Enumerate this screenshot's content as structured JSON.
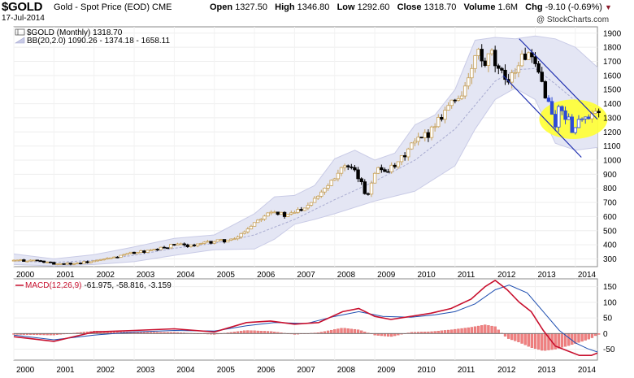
{
  "header": {
    "symbol": "$GOLD",
    "description": "Gold - Spot Price (EOD)",
    "exchange": "CME",
    "date": "17-Jul-2014",
    "open_label": "Open",
    "open": "1327.50",
    "high_label": "High",
    "high": "1346.80",
    "low_label": "Low",
    "low": "1292.60",
    "close_label": "Close",
    "close": "1318.70",
    "volume_label": "Volume",
    "volume": "1.6M",
    "chg_label": "Chg",
    "chg": "-9.10 (-0.69%)",
    "brand": "@ StockCharts.com"
  },
  "colors": {
    "up": "#c8a25a",
    "down": "#000000",
    "blue_candle": "#2e4bd6",
    "band_fill": "#e4e6f4",
    "band_edge": "#c9cbe6",
    "channel": "#1f2fb0",
    "highlight": "#ffff33",
    "macd": "#c8102e",
    "signal": "#1f4fb0",
    "hist": "#f08080"
  },
  "chart_data": [
    {
      "type": "candlestick",
      "title": "$GOLD (Monthly) 1318.70",
      "legend": [
        "$GOLD (Monthly) 1318.70",
        "BB(20,2.0) 1090.26 - 1374.18 - 1658.11"
      ],
      "x": [
        "2000",
        "2001",
        "2002",
        "2003",
        "2004",
        "2005",
        "2006",
        "2007",
        "2008",
        "2009",
        "2010",
        "2011",
        "2012",
        "2013",
        "2014"
      ],
      "x_range": [
        2000.0,
        2014.55
      ],
      "ylim": [
        245,
        1945
      ],
      "yticks": [
        300,
        400,
        500,
        600,
        700,
        800,
        900,
        1000,
        1100,
        1200,
        1300,
        1400,
        1500,
        1600,
        1700,
        1800,
        1900
      ],
      "close_series": [
        [
          2000.0,
          288
        ],
        [
          2000.5,
          290
        ],
        [
          2001.0,
          265
        ],
        [
          2001.5,
          268
        ],
        [
          2002.0,
          282
        ],
        [
          2002.5,
          310
        ],
        [
          2003.0,
          345
        ],
        [
          2003.5,
          360
        ],
        [
          2004.0,
          400
        ],
        [
          2004.5,
          395
        ],
        [
          2005.0,
          425
        ],
        [
          2005.5,
          435
        ],
        [
          2006.0,
          560
        ],
        [
          2006.4,
          650
        ],
        [
          2006.8,
          600
        ],
        [
          2007.3,
          680
        ],
        [
          2007.8,
          820
        ],
        [
          2008.2,
          960
        ],
        [
          2008.55,
          900
        ],
        [
          2008.8,
          740
        ],
        [
          2009.0,
          930
        ],
        [
          2009.5,
          940
        ],
        [
          2009.9,
          1100
        ],
        [
          2010.3,
          1180
        ],
        [
          2010.8,
          1380
        ],
        [
          2011.1,
          1450
        ],
        [
          2011.4,
          1600
        ],
        [
          2011.55,
          1800
        ],
        [
          2011.7,
          1650
        ],
        [
          2011.9,
          1750
        ],
        [
          2012.1,
          1600
        ],
        [
          2012.4,
          1590
        ],
        [
          2012.6,
          1700
        ],
        [
          2012.8,
          1760
        ],
        [
          2012.95,
          1670
        ],
        [
          2013.1,
          1600
        ],
        [
          2013.25,
          1480
        ],
        [
          2013.4,
          1340
        ],
        [
          2013.5,
          1250
        ],
        [
          2013.6,
          1380
        ],
        [
          2013.75,
          1320
        ],
        [
          2013.95,
          1210
        ],
        [
          2014.05,
          1250
        ],
        [
          2014.15,
          1330
        ],
        [
          2014.25,
          1280
        ],
        [
          2014.35,
          1290
        ],
        [
          2014.45,
          1320
        ]
      ],
      "bollinger": {
        "upper": [
          [
            2000,
            335
          ],
          [
            2001,
            300
          ],
          [
            2002,
            330
          ],
          [
            2003,
            385
          ],
          [
            2004,
            445
          ],
          [
            2005,
            470
          ],
          [
            2006,
            620
          ],
          [
            2006.5,
            740
          ],
          [
            2007,
            750
          ],
          [
            2007.5,
            820
          ],
          [
            2008,
            1010
          ],
          [
            2008.5,
            1070
          ],
          [
            2009,
            1000
          ],
          [
            2009.5,
            1050
          ],
          [
            2010,
            1250
          ],
          [
            2010.5,
            1320
          ],
          [
            2011,
            1500
          ],
          [
            2011.5,
            1850
          ],
          [
            2012,
            1870
          ],
          [
            2012.5,
            1860
          ],
          [
            2013,
            1880
          ],
          [
            2013.5,
            1860
          ],
          [
            2014,
            1800
          ],
          [
            2014.55,
            1658
          ]
        ],
        "middle": [
          [
            2000,
            285
          ],
          [
            2001,
            275
          ],
          [
            2002,
            290
          ],
          [
            2003,
            325
          ],
          [
            2004,
            375
          ],
          [
            2005,
            410
          ],
          [
            2006,
            470
          ],
          [
            2007,
            580
          ],
          [
            2008,
            720
          ],
          [
            2009,
            850
          ],
          [
            2010,
            1000
          ],
          [
            2011,
            1220
          ],
          [
            2012,
            1560
          ],
          [
            2012.5,
            1640
          ],
          [
            2013,
            1650
          ],
          [
            2013.5,
            1540
          ],
          [
            2014,
            1420
          ],
          [
            2014.55,
            1374
          ]
        ],
        "lower": [
          [
            2000,
            260
          ],
          [
            2001,
            250
          ],
          [
            2002,
            260
          ],
          [
            2003,
            280
          ],
          [
            2004,
            325
          ],
          [
            2005,
            365
          ],
          [
            2006,
            370
          ],
          [
            2006.5,
            440
          ],
          [
            2007,
            545
          ],
          [
            2007.5,
            580
          ],
          [
            2008,
            620
          ],
          [
            2009,
            710
          ],
          [
            2010,
            780
          ],
          [
            2011,
            960
          ],
          [
            2011.5,
            1220
          ],
          [
            2012,
            1430
          ],
          [
            2012.5,
            1510
          ],
          [
            2013,
            1430
          ],
          [
            2013.5,
            1120
          ],
          [
            2014,
            1070
          ],
          [
            2014.55,
            1090
          ]
        ]
      },
      "channel_upper": [
        [
          2012.6,
          1860
        ],
        [
          2014.55,
          1290
        ]
      ],
      "channel_lower": [
        [
          2012.2,
          1600
        ],
        [
          2014.15,
          1020
        ]
      ],
      "highlight_center": [
        2013.95,
        1290
      ],
      "highlight_radius": [
        0.85,
        140
      ]
    },
    {
      "type": "line",
      "title": "MACD(12,26,9) -61.975, -58.816, -3.159",
      "legend": [
        "MACD(12,26,9)",
        "-61.975, -58.816, -3.159"
      ],
      "ylim": [
        -85,
        175
      ],
      "yticks": [
        -50,
        0,
        50,
        100,
        150
      ],
      "series": [
        {
          "name": "MACD",
          "values": [
            [
              2000,
              -10
            ],
            [
              2001,
              -25
            ],
            [
              2002,
              5
            ],
            [
              2003,
              10
            ],
            [
              2004,
              15
            ],
            [
              2005,
              5
            ],
            [
              2005.8,
              35
            ],
            [
              2006.4,
              40
            ],
            [
              2007,
              30
            ],
            [
              2007.6,
              35
            ],
            [
              2008.2,
              70
            ],
            [
              2008.6,
              80
            ],
            [
              2009,
              55
            ],
            [
              2009.4,
              45
            ],
            [
              2009.9,
              55
            ],
            [
              2010.4,
              65
            ],
            [
              2010.9,
              80
            ],
            [
              2011.4,
              110
            ],
            [
              2011.75,
              150
            ],
            [
              2012,
              170
            ],
            [
              2012.3,
              140
            ],
            [
              2012.6,
              100
            ],
            [
              2012.9,
              70
            ],
            [
              2013.2,
              10
            ],
            [
              2013.5,
              -40
            ],
            [
              2013.8,
              -55
            ],
            [
              2014.1,
              -70
            ],
            [
              2014.4,
              -70
            ],
            [
              2014.55,
              -62
            ]
          ]
        },
        {
          "name": "Signal",
          "values": [
            [
              2000,
              -5
            ],
            [
              2001,
              -20
            ],
            [
              2002,
              -5
            ],
            [
              2003,
              5
            ],
            [
              2004,
              10
            ],
            [
              2005,
              8
            ],
            [
              2005.8,
              25
            ],
            [
              2006.5,
              35
            ],
            [
              2007.3,
              32
            ],
            [
              2008,
              55
            ],
            [
              2008.6,
              70
            ],
            [
              2009.2,
              55
            ],
            [
              2009.9,
              52
            ],
            [
              2010.5,
              60
            ],
            [
              2011,
              70
            ],
            [
              2011.5,
              95
            ],
            [
              2012,
              140
            ],
            [
              2012.35,
              155
            ],
            [
              2012.8,
              130
            ],
            [
              2013.2,
              70
            ],
            [
              2013.6,
              10
            ],
            [
              2014,
              -30
            ],
            [
              2014.3,
              -48
            ],
            [
              2014.55,
              -59
            ]
          ]
        },
        {
          "name": "Histogram",
          "values": [
            [
              2000,
              -3
            ],
            [
              2001,
              -5
            ],
            [
              2002,
              8
            ],
            [
              2003,
              5
            ],
            [
              2004,
              4
            ],
            [
              2005,
              -3
            ],
            [
              2005.8,
              10
            ],
            [
              2006.4,
              7
            ],
            [
              2007,
              -3
            ],
            [
              2007.6,
              3
            ],
            [
              2008.2,
              18
            ],
            [
              2008.6,
              12
            ],
            [
              2009,
              -5
            ],
            [
              2009.4,
              -10
            ],
            [
              2009.9,
              4
            ],
            [
              2010.4,
              6
            ],
            [
              2010.9,
              12
            ],
            [
              2011.4,
              20
            ],
            [
              2011.75,
              28
            ],
            [
              2012,
              22
            ],
            [
              2012.3,
              -15
            ],
            [
              2012.6,
              -28
            ],
            [
              2012.9,
              -45
            ],
            [
              2013.2,
              -55
            ],
            [
              2013.5,
              -50
            ],
            [
              2013.8,
              -40
            ],
            [
              2014.1,
              -28
            ],
            [
              2014.4,
              -15
            ],
            [
              2014.55,
              -3
            ]
          ]
        }
      ],
      "x": [
        "2000",
        "2001",
        "2002",
        "2003",
        "2004",
        "2005",
        "2006",
        "2007",
        "2008",
        "2009",
        "2010",
        "2011",
        "2012",
        "2013",
        "2014"
      ]
    }
  ]
}
